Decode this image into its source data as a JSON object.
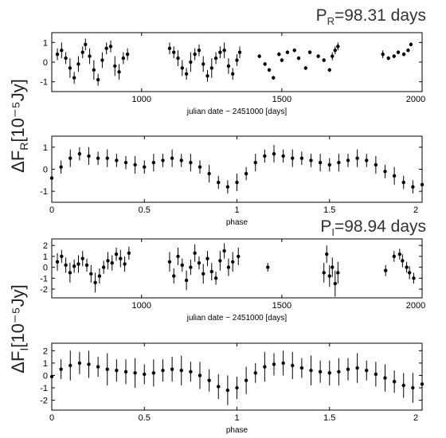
{
  "page": {
    "r_block": {
      "ylabel_main": "ΔF",
      "ylabel_sub": "R",
      "ylabel_units": "[10⁻⁵Jy]"
    },
    "i_block": {
      "ylabel_main": "ΔF",
      "ylabel_sub": "I",
      "ylabel_units": "[10⁻⁵Jy]"
    }
  },
  "chart_data": [
    {
      "id": "r-date",
      "type": "scatter",
      "title": "P_R=98.31 days",
      "title_main": "P",
      "title_sub": "R",
      "title_rest": "=98.31 days",
      "xlabel": "julian date − 2451000 [days]",
      "xlim": [
        680,
        2000
      ],
      "ylim": [
        -1.5,
        1.5
      ],
      "xticks": [
        1000,
        1500,
        2000
      ],
      "xtick_labels": [
        "1000",
        "1500",
        "2000"
      ],
      "yticks": [
        -1,
        0,
        1
      ],
      "ytick_labels": [
        "-1",
        "0",
        "1"
      ],
      "series": [
        {
          "x": [
            700,
            715,
            730,
            745,
            760,
            775,
            790,
            800,
            815,
            830,
            845,
            860,
            875,
            890,
            905,
            920,
            935,
            950,
            1100,
            1115,
            1130,
            1145,
            1160,
            1175,
            1190,
            1205,
            1220,
            1235,
            1250,
            1265,
            1280,
            1295,
            1310,
            1325,
            1340,
            1350,
            1420,
            1440,
            1455,
            1470,
            1490,
            1500,
            1520,
            1545,
            1560,
            1585,
            1600,
            1630,
            1650,
            1670,
            1680,
            1690,
            1700,
            1860,
            1880,
            1900,
            1915,
            1935,
            1950,
            1960
          ],
          "y": [
            0.4,
            0.6,
            0.2,
            -0.3,
            -0.8,
            -0.1,
            0.5,
            0.9,
            0.3,
            -0.4,
            -0.9,
            0.1,
            0.7,
            0.8,
            -0.2,
            -0.5,
            0.2,
            0.4,
            0.7,
            0.5,
            0.2,
            -0.3,
            -0.6,
            0.0,
            0.4,
            0.6,
            -0.1,
            -0.7,
            -0.3,
            0.2,
            0.5,
            0.6,
            -0.2,
            -0.6,
            0.1,
            0.5,
            0.3,
            -0.1,
            -0.4,
            -0.8,
            0.4,
            0.1,
            0.5,
            0.6,
            0.2,
            -0.3,
            0.5,
            0.3,
            0.1,
            -0.4,
            0.3,
            0.6,
            0.8,
            0.4,
            0.2,
            0.3,
            0.5,
            0.4,
            0.6,
            0.9
          ],
          "err": [
            0.3,
            0.4,
            0.3,
            0.5,
            0.3,
            0.4,
            0.3,
            0.3,
            0.4,
            0.5,
            0.3,
            0.4,
            0.3,
            0.3,
            0.5,
            0.4,
            0.3,
            0.3,
            0.3,
            0.3,
            0.4,
            0.4,
            0.3,
            0.5,
            0.3,
            0.3,
            0.4,
            0.3,
            0.5,
            0.3,
            0.3,
            0.4,
            0.4,
            0.3,
            0.3,
            0.3,
            0.1,
            0.1,
            0.1,
            0.1,
            0.1,
            0.1,
            0.1,
            0.1,
            0.1,
            0.1,
            0.1,
            0.1,
            0.1,
            0.1,
            0.2,
            0.2,
            0.2,
            0.2,
            0.1,
            0.1,
            0.1,
            0.1,
            0.1,
            0.1
          ]
        }
      ]
    },
    {
      "id": "r-phase",
      "type": "scatter",
      "xlabel": "phase",
      "xlim": [
        0,
        2
      ],
      "ylim": [
        -1.5,
        1.5
      ],
      "xticks": [
        0,
        0.5,
        1,
        1.5,
        2
      ],
      "xtick_labels": [
        "0",
        "0.5",
        "1",
        "1.5",
        "2"
      ],
      "yticks": [
        -1,
        0,
        1
      ],
      "ytick_labels": [
        "-1",
        "0",
        "1"
      ],
      "series": [
        {
          "x": [
            0.0,
            0.05,
            0.1,
            0.15,
            0.2,
            0.25,
            0.3,
            0.35,
            0.4,
            0.45,
            0.5,
            0.55,
            0.6,
            0.65,
            0.7,
            0.75,
            0.8,
            0.85,
            0.9,
            0.95,
            1.0,
            1.05,
            1.1,
            1.15,
            1.2,
            1.25,
            1.3,
            1.35,
            1.4,
            1.45,
            1.5,
            1.55,
            1.6,
            1.65,
            1.7,
            1.75,
            1.8,
            1.85,
            1.9,
            1.95,
            2.0
          ],
          "y": [
            -0.4,
            0.1,
            0.5,
            0.7,
            0.6,
            0.5,
            0.5,
            0.4,
            0.3,
            0.2,
            0.1,
            0.3,
            0.4,
            0.5,
            0.4,
            0.3,
            0.1,
            -0.2,
            -0.6,
            -0.8,
            -0.6,
            -0.2,
            0.3,
            0.6,
            0.7,
            0.6,
            0.5,
            0.5,
            0.4,
            0.3,
            0.2,
            0.3,
            0.4,
            0.5,
            0.4,
            0.2,
            -0.1,
            -0.3,
            -0.6,
            -0.8,
            -0.7
          ],
          "err": [
            0.4,
            0.3,
            0.4,
            0.3,
            0.4,
            0.3,
            0.4,
            0.3,
            0.3,
            0.4,
            0.3,
            0.4,
            0.3,
            0.4,
            0.3,
            0.4,
            0.3,
            0.4,
            0.3,
            0.3,
            0.4,
            0.3,
            0.4,
            0.3,
            0.4,
            0.3,
            0.4,
            0.3,
            0.3,
            0.4,
            0.3,
            0.4,
            0.3,
            0.4,
            0.3,
            0.4,
            0.3,
            0.4,
            0.3,
            0.3,
            0.3
          ]
        }
      ]
    },
    {
      "id": "i-date",
      "type": "scatter",
      "title": "P_I=98.94 days",
      "title_main": "P",
      "title_sub": "I",
      "title_rest": "=98.94 days",
      "xlabel": "julian date − 2451000 [days]",
      "xlim": [
        680,
        2000
      ],
      "ylim": [
        -2.8,
        2.6
      ],
      "xticks": [
        1000,
        1500,
        2000
      ],
      "xtick_labels": [
        "1000",
        "1500",
        "2000"
      ],
      "yticks": [
        -2,
        -1,
        0,
        1,
        2
      ],
      "ytick_labels": [
        "-2",
        "-1",
        "0",
        "1",
        "2"
      ],
      "series": [
        {
          "x": [
            700,
            715,
            730,
            745,
            760,
            775,
            790,
            805,
            820,
            835,
            850,
            865,
            880,
            895,
            910,
            925,
            940,
            955,
            1100,
            1115,
            1130,
            1145,
            1160,
            1175,
            1190,
            1205,
            1220,
            1235,
            1250,
            1265,
            1280,
            1295,
            1310,
            1325,
            1345,
            1450,
            1650,
            1660,
            1670,
            1680,
            1690,
            1700,
            1870,
            1900,
            1920,
            1930,
            1945,
            1955,
            1970
          ],
          "y": [
            0.5,
            1.0,
            0.2,
            -0.5,
            0.1,
            0.3,
            0.8,
            0.2,
            -0.6,
            -1.4,
            -0.8,
            0.0,
            0.6,
            0.4,
            1.2,
            0.8,
            0.3,
            1.3,
            0.5,
            -0.8,
            1.0,
            0.2,
            -1.2,
            0.0,
            1.3,
            0.4,
            -0.6,
            0.8,
            -0.4,
            -1.0,
            0.6,
            1.5,
            0.0,
            0.5,
            1.0,
            0.0,
            -0.5,
            1.2,
            -0.8,
            0.0,
            -1.5,
            -0.5,
            -0.3,
            1.0,
            1.2,
            0.6,
            0.0,
            -0.5,
            -1.0
          ],
          "err": [
            0.8,
            0.6,
            0.7,
            0.9,
            0.6,
            0.8,
            0.7,
            0.6,
            0.8,
            0.9,
            0.7,
            0.6,
            0.8,
            0.7,
            0.6,
            0.8,
            0.7,
            0.6,
            0.9,
            0.7,
            0.8,
            0.6,
            0.9,
            0.7,
            0.8,
            0.6,
            0.9,
            0.7,
            0.8,
            0.6,
            0.9,
            0.7,
            0.8,
            0.9,
            0.8,
            0.4,
            0.9,
            0.8,
            1.0,
            0.9,
            1.2,
            1.0,
            0.5,
            0.5,
            0.5,
            0.6,
            0.5,
            0.6,
            0.5
          ]
        }
      ]
    },
    {
      "id": "i-phase",
      "type": "scatter",
      "xlabel": "phase",
      "xlim": [
        0,
        2
      ],
      "ylim": [
        -2.8,
        2.6
      ],
      "xticks": [
        0,
        0.5,
        1,
        1.5,
        2
      ],
      "xtick_labels": [
        "0",
        "0.5",
        "1",
        "1.5",
        "2"
      ],
      "yticks": [
        -2,
        -1,
        0,
        1,
        2
      ],
      "ytick_labels": [
        "-2",
        "-1",
        "0",
        "1",
        "2"
      ],
      "series": [
        {
          "x": [
            0.0,
            0.05,
            0.1,
            0.15,
            0.2,
            0.25,
            0.3,
            0.35,
            0.4,
            0.45,
            0.5,
            0.55,
            0.6,
            0.65,
            0.7,
            0.75,
            0.8,
            0.85,
            0.9,
            0.95,
            1.0,
            1.05,
            1.1,
            1.15,
            1.2,
            1.25,
            1.3,
            1.35,
            1.4,
            1.45,
            1.5,
            1.55,
            1.6,
            1.65,
            1.7,
            1.75,
            1.8,
            1.85,
            1.9,
            1.95,
            2.0
          ],
          "y": [
            -0.1,
            0.5,
            0.8,
            1.0,
            0.9,
            0.7,
            0.5,
            0.4,
            0.3,
            0.2,
            0.1,
            0.2,
            0.4,
            0.5,
            0.4,
            0.3,
            0.0,
            -0.4,
            -0.9,
            -1.2,
            -1.0,
            -0.4,
            0.2,
            0.7,
            0.9,
            1.0,
            0.8,
            0.6,
            0.4,
            0.3,
            0.2,
            0.3,
            0.5,
            0.6,
            0.4,
            0.1,
            -0.2,
            -0.5,
            -0.8,
            -1.0,
            -0.7
          ],
          "err": [
            1.0,
            0.8,
            1.2,
            0.9,
            1.1,
            0.8,
            1.3,
            0.9,
            1.0,
            1.2,
            0.8,
            1.1,
            0.9,
            1.0,
            1.2,
            0.8,
            1.1,
            0.9,
            1.0,
            1.2,
            0.9,
            1.1,
            0.8,
            1.2,
            0.9,
            1.0,
            1.1,
            0.8,
            1.2,
            0.9,
            1.0,
            1.1,
            0.9,
            1.2,
            0.8,
            1.0,
            1.1,
            0.9,
            1.0,
            1.2,
            0.9
          ]
        }
      ]
    }
  ]
}
